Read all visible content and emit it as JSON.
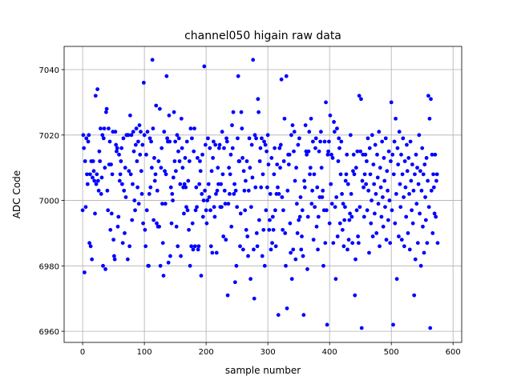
{
  "chart_data": {
    "type": "scatter",
    "title": "channel050 higain raw data",
    "xlabel": "sample number",
    "ylabel": "ADC Code",
    "xlim": [
      -30,
      614
    ],
    "ylim": [
      6956.6,
      7047.1
    ],
    "xticks": [
      0,
      100,
      200,
      300,
      400,
      500,
      600
    ],
    "yticks": [
      6960,
      6980,
      7000,
      7020,
      7040
    ],
    "grid": true,
    "color": "#0000ff",
    "x": [
      0,
      1,
      2,
      3,
      4,
      5,
      6,
      7,
      8,
      9,
      10,
      11,
      12,
      13,
      14,
      15,
      16,
      17,
      18,
      19,
      20,
      21,
      22,
      23,
      24,
      25,
      26,
      27,
      28,
      29,
      30,
      31,
      32,
      33,
      34,
      35,
      36,
      37,
      38,
      39,
      40,
      41,
      42,
      43,
      44,
      45,
      46,
      47,
      48,
      49,
      50,
      51,
      52,
      53,
      54,
      55,
      56,
      57,
      58,
      59,
      60,
      61,
      62,
      63,
      64,
      65,
      66,
      67,
      68,
      69,
      70,
      71,
      72,
      73,
      74,
      75,
      76,
      77,
      78,
      79,
      80,
      81,
      82,
      83,
      84,
      85,
      86,
      87,
      88,
      89,
      90,
      91,
      92,
      93,
      94,
      95,
      96,
      97,
      98,
      99,
      100,
      101,
      102,
      103,
      104,
      105,
      106,
      107,
      108,
      109,
      110,
      111,
      112,
      113,
      114,
      115,
      116,
      117,
      118,
      119,
      120,
      121,
      122,
      123,
      124,
      125,
      126,
      127,
      128,
      129,
      130,
      131,
      132,
      133,
      134,
      135,
      136,
      137,
      138,
      139,
      140,
      141,
      142,
      143,
      144,
      145,
      146,
      147,
      148,
      149,
      150,
      151,
      152,
      153,
      154,
      155,
      156,
      157,
      158,
      159,
      160,
      161,
      162,
      163,
      164,
      165,
      166,
      167,
      168,
      169,
      170,
      171,
      172,
      173,
      174,
      175,
      176,
      177,
      178,
      179,
      180,
      181,
      182,
      183,
      184,
      185,
      186,
      187,
      188,
      189,
      190,
      191,
      192,
      193,
      194,
      195,
      196,
      197,
      198,
      199,
      200,
      201,
      202,
      203,
      204,
      205,
      206,
      207,
      208,
      209,
      210,
      211,
      212,
      213,
      214,
      215,
      216,
      217,
      218,
      219,
      220,
      221,
      222,
      223,
      224,
      225,
      226,
      227,
      228,
      229,
      230,
      231,
      232,
      233,
      234,
      235,
      236,
      237,
      238,
      239,
      240,
      241,
      242,
      243,
      244,
      245,
      246,
      247,
      248,
      249,
      250,
      251,
      252,
      253,
      254,
      255,
      256,
      257,
      258,
      259,
      260,
      261,
      262,
      263,
      264,
      265,
      266,
      267,
      268,
      269,
      270,
      271,
      272,
      273,
      274,
      275,
      276,
      277,
      278,
      279,
      280,
      281,
      282,
      283,
      284,
      285,
      286,
      287,
      288,
      289,
      290,
      291,
      292,
      293,
      294,
      295,
      296,
      297,
      298,
      299,
      300,
      301,
      302,
      303,
      304,
      305,
      306,
      307,
      308,
      309,
      310,
      311,
      312,
      313,
      314,
      315,
      316,
      317,
      318,
      319,
      320,
      321,
      322,
      323,
      324,
      325,
      326,
      327,
      328,
      329,
      330,
      331,
      332,
      333,
      334,
      335,
      336,
      337,
      338,
      339,
      340,
      341,
      342,
      343,
      344,
      345,
      346,
      347,
      348,
      349,
      350,
      351,
      352,
      353,
      354,
      355,
      356,
      357,
      358,
      359,
      360,
      361,
      362,
      363,
      364,
      365,
      366,
      367,
      368,
      369,
      370,
      371,
      372,
      373,
      374,
      375,
      376,
      377,
      378,
      379,
      380,
      381,
      382,
      383,
      384,
      385,
      386,
      387,
      388,
      389,
      390,
      391,
      392,
      393,
      394,
      395,
      396,
      397,
      398,
      399,
      400,
      401,
      402,
      403,
      404,
      405,
      406,
      407,
      408,
      409,
      410,
      411,
      412,
      413,
      414,
      415,
      416,
      417,
      418,
      419,
      420,
      421,
      422,
      423,
      424,
      425,
      426,
      427,
      428,
      429,
      430,
      431,
      432,
      433,
      434,
      435,
      436,
      437,
      438,
      439,
      440,
      441,
      442,
      443,
      444,
      445,
      446,
      447,
      448,
      449,
      450,
      451,
      452,
      453,
      454,
      455,
      456,
      457,
      458,
      459,
      460,
      461,
      462,
      463,
      464,
      465,
      466,
      467,
      468,
      469,
      470,
      471,
      472,
      473,
      474,
      475,
      476,
      477,
      478,
      479,
      480,
      481,
      482,
      483,
      484,
      485,
      486,
      487,
      488,
      489,
      490,
      491,
      492,
      493,
      494,
      495,
      496,
      497,
      498,
      499,
      500,
      501,
      502,
      503,
      504,
      505,
      506,
      507,
      508,
      509,
      510,
      511,
      512,
      513,
      514,
      515,
      516,
      517,
      518,
      519,
      520,
      521,
      522,
      523,
      524,
      525,
      526,
      527,
      528,
      529,
      530,
      531,
      532,
      533,
      534,
      535,
      536,
      537,
      538,
      539,
      540,
      541,
      542,
      543,
      544,
      545,
      546,
      547,
      548,
      549,
      550,
      551,
      552,
      553,
      554,
      555,
      556,
      557,
      558,
      559,
      560,
      561,
      562,
      563,
      564,
      565,
      566,
      567,
      568,
      569,
      570,
      571,
      572,
      573,
      574,
      575
    ],
    "values": [
      6997,
      7020,
      7016,
      6978,
      7012,
      6998,
      7019,
      7008,
      7005,
      7018,
      7020,
      6987,
      7008,
      6986,
      7012,
      6982,
      7007,
      7012,
      7009,
      7006,
      6996,
      7032,
      7005,
      7008,
      7034,
      7006,
      7003,
      7015,
      7012,
      7022,
      7002,
      7007,
      7020,
      6980,
      7019,
      7022,
      7010,
      6979,
      7027,
      7028,
      7003,
      6997,
      7022,
      7011,
      7018,
      6991,
      7011,
      6996,
      7008,
      7021,
      6988,
      6983,
      6982,
      7021,
      7017,
      7015,
      7016,
      6992,
      6995,
      7014,
      7006,
      7008,
      7012,
      7016,
      7005,
      6987,
      7019,
      7003,
      6990,
      7010,
      7001,
      7020,
      7020,
      6982,
      7020,
      7009,
      6986,
      7026,
      7008,
      7020,
      6994,
      7005,
      7021,
      7015,
      7000,
      6997,
      7017,
      7022,
      7012,
      7004,
      7018,
      6999,
      7023,
      7014,
      7021,
      7009,
      7002,
      7017,
      6993,
      7036,
      7020,
      6991,
      6986,
      7014,
      6997,
      7021,
      6980,
      6980,
      7002,
      7019,
      7004,
      7018,
      7010,
      7043,
      7022,
      6994,
      7013,
      7006,
      7008,
      7029,
      6993,
      7003,
      6992,
      7012,
      6992,
      7028,
      6980,
      7010,
      7016,
      6999,
      6987,
      6977,
      7021,
      7009,
      6999,
      7008,
      7038,
      7019,
      7018,
      6981,
      7026,
      7018,
      6983,
      7004,
      6993,
      7002,
      7000,
      7007,
      7027,
      7012,
      7018,
      7009,
      6992,
      7020,
      6986,
      7015,
      7019,
      7012,
      7005,
      6983,
      7025,
      7016,
      7010,
      7004,
      6996,
      7005,
      7013,
      7004,
      6998,
      7018,
      6997,
      7006,
      6991,
      7012,
      6980,
      7022,
      6986,
      7019,
      6993,
      6985,
      7015,
      7022,
      6986,
      6997,
      7004,
      6998,
      7013,
      6985,
      6986,
      7005,
      7012,
      7009,
      6977,
      7002,
      7014,
      6995,
      7000,
      7041,
      7003,
      7017,
      6997,
      6993,
      7000,
      7019,
      7005,
      7001,
      7016,
      6997,
      6986,
      7009,
      6984,
      7013,
      7018,
      6998,
      6995,
      7017,
      7002,
      6984,
      7003,
      7010,
      7005,
      7016,
      7017,
      6998,
      7005,
      6998,
      7021,
      7008,
      6989,
      7016,
      7003,
      6999,
      6988,
      7019,
      7018,
      6971,
      6999,
      7010,
      7002,
      7008,
      7014,
      6992,
      7023,
      7016,
      7027,
      7002,
      7005,
      6975,
      7003,
      6980,
      6998,
      7019,
      7038,
      7012,
      7012,
      6986,
      6996,
      7027,
      7022,
      7013,
      6985,
      7009,
      7003,
      6997,
      7006,
      6991,
      7012,
      6989,
      6983,
      7003,
      7019,
      7010,
      6976,
      6998,
      7017,
      7007,
      7043,
      6985,
      6970,
      7020,
      7004,
      7019,
      6990,
      6986,
      7031,
      7027,
      6994,
      7012,
      7016,
      7004,
      7019,
      6983,
      7008,
      6991,
      7018,
      6980,
      7017,
      6997,
      7015,
      7004,
      7020,
      7011,
      6991,
      6994,
      7002,
      6985,
      7013,
      6987,
      6995,
      6991,
      7008,
      7016,
      6997,
      6986,
      7002,
      7011,
      7004,
      6965,
      7002,
      7016,
      7010,
      7017,
      7037,
      7001,
      6991,
      6997,
      7012,
      7025,
      6990,
      6980,
      7038,
      6967,
      7003,
      7014,
      7011,
      7014,
      6993,
      6984,
      7020,
      6976,
      7023,
      6985,
      7015,
      7021,
      7006,
      6982,
      7010,
      6999,
      6990,
      7017,
      6994,
      7019,
      6995,
      7001,
      6985,
      6989,
      6997,
      6983,
      6965,
      7006,
      7004,
      7023,
      7015,
      7014,
      6979,
      6995,
      7015,
      7021,
      7008,
      7010,
      7025,
      6999,
      7003,
      7018,
      6988,
      7008,
      6998,
      7016,
      7019,
      6992,
      7004,
      6985,
      6995,
      7015,
      7001,
      7018,
      7021,
      7010,
      7001,
      7003,
      6980,
      6997,
      7018,
      6987,
      7030,
      6997,
      6962,
      7014,
      7015,
      7018,
      6993,
      7026,
      7005,
      7014,
      6999,
      7013,
      6987,
      7024,
      7021,
      6998,
      6976,
      7001,
      7022,
      6989,
      7012,
      7019,
      7016,
      6993,
      7008,
      7018,
      7002,
      6991,
      6999,
      6986,
      6994,
      6998,
      7006,
      7008,
      7014,
      6985,
      7005,
      6988,
      6994,
      6996,
      7020,
      7002,
      6995,
      6987,
      7009,
      7014,
      7008,
      6971,
      6982,
      7010,
      6997,
      7015,
      6989,
      6987,
      7032,
      6998,
      7015,
      7031,
      6961,
      7006,
      7014,
      7004,
      6995,
      7008,
      7014,
      7005,
      7012,
      6997,
      7019,
      7003,
      6984,
      7016,
      7008,
      6993,
      7000,
      7020,
      6989,
      7011,
      7005,
      6996,
      7017,
      7002,
      6990,
      7014,
      7007,
      6999,
      7021,
      6986,
      7010,
      7004,
      6995,
      7018,
      7001,
      6992,
      7013,
      7006,
      6998,
      7019,
      6988,
      7009,
      7003,
      6994,
      7015,
      7000,
      6987,
      7012,
      7030,
      6997,
      7014,
      6962,
      7008,
      7018,
      6993,
      7025,
      7002,
      6976,
      7016,
      7011,
      6989,
      7021,
      7005,
      6998,
      7014,
      6988,
      7008,
      7019,
      7001,
      6986,
      7012,
      7004,
      6995,
      7017,
      7009,
      6990,
      7013,
      7002,
      6985,
      7018,
      7006,
      6997,
      7011,
      6993,
      7003,
      6971,
      7008,
      6982,
      7014,
      6999,
      7010,
      6987,
      7005,
      7020,
      6996,
      7009,
      6980,
      7003,
      7016,
      6992,
      7008,
      6984,
      7011,
      7001,
      6994,
      7013,
      6987,
      7006,
      7032,
      6998,
      7025,
      6961,
      7031,
      7003,
      7014,
      6990,
      7008,
      7004,
      6996,
      7014,
      6995,
      7006,
      7008,
      6987
    ]
  }
}
